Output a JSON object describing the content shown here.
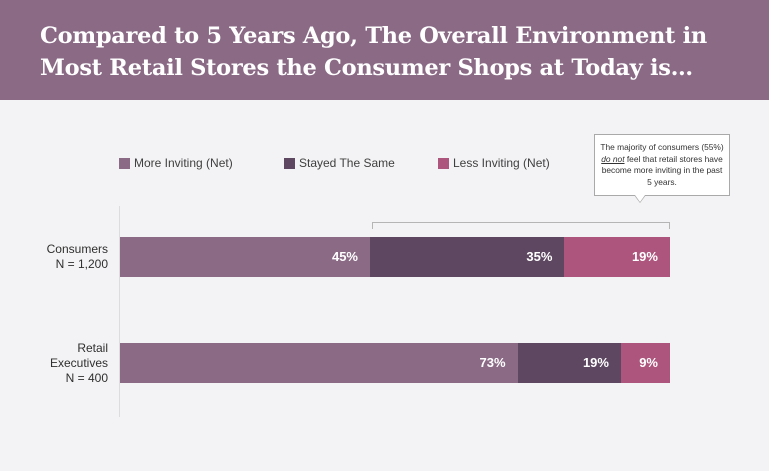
{
  "header": {
    "title": "Compared to 5 Years Ago, The Overall Environment in Most Retail Stores the Consumer Shops at Today is…"
  },
  "callout": {
    "before": "The majority of consumers (55%) ",
    "emphasis": "do not",
    "after": " feel that retail stores have become more inviting in the past 5 years."
  },
  "colors": {
    "header": "#8b6a86",
    "more_inviting": "#8b6a86",
    "stayed_same": "#5e4761",
    "less_inviting": "#ad557c"
  },
  "chart_data": {
    "type": "bar",
    "orientation": "horizontal",
    "stacked": true,
    "categories": [
      "Consumers\nN = 1,200",
      "Retail\nExecutives\nN = 400"
    ],
    "series": [
      {
        "name": "More Inviting (Net)",
        "values": [
          45,
          73
        ],
        "labels": [
          "45%",
          "73%"
        ]
      },
      {
        "name": "Stayed The Same",
        "values": [
          35,
          19
        ],
        "labels": [
          "35%",
          "19%"
        ]
      },
      {
        "name": "Less Inviting (Net)",
        "values": [
          19,
          9
        ],
        "labels": [
          "19%",
          "9%"
        ]
      }
    ],
    "legend_position": "top",
    "xlim": [
      0,
      100
    ],
    "title": "",
    "xlabel": "",
    "ylabel": ""
  }
}
